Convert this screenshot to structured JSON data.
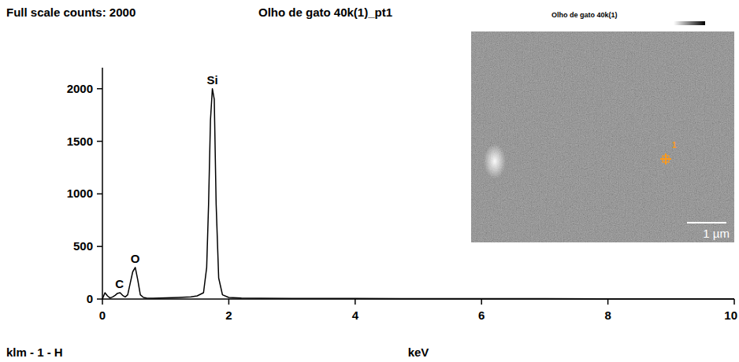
{
  "chart_data": {
    "type": "line",
    "title": "Olho de gato 40k(1)_pt1",
    "header": "Full scale counts: 2000",
    "footer": "klm - 1 - H",
    "x_label": "keV",
    "color": "#000000",
    "x": [
      0,
      0.04,
      0.08,
      0.12,
      0.16,
      0.2,
      0.24,
      0.28,
      0.32,
      0.36,
      0.4,
      0.44,
      0.48,
      0.52,
      0.56,
      0.6,
      0.65,
      0.7,
      0.8,
      0.9,
      1.0,
      1.2,
      1.4,
      1.5,
      1.6,
      1.65,
      1.68,
      1.71,
      1.74,
      1.77,
      1.8,
      1.84,
      1.9,
      2.0,
      2.2,
      2.5,
      3.0,
      3.5,
      4,
      5,
      6,
      7,
      8,
      9,
      10
    ],
    "values": [
      0,
      60,
      30,
      10,
      20,
      35,
      55,
      60,
      35,
      20,
      40,
      150,
      260,
      300,
      180,
      40,
      15,
      10,
      8,
      10,
      12,
      15,
      20,
      30,
      60,
      300,
      900,
      1700,
      2000,
      1900,
      900,
      200,
      40,
      15,
      10,
      8,
      6,
      5,
      5,
      4,
      3,
      3,
      2,
      2,
      2
    ],
    "xlim": [
      0,
      10
    ],
    "xticks": [
      0,
      2,
      4,
      6,
      8,
      10
    ],
    "ylim": [
      0,
      2200
    ],
    "yticks": [
      0,
      500,
      1000,
      1500,
      2000
    ],
    "annotations": [
      {
        "text": "C",
        "x": 0.27,
        "y": 60
      },
      {
        "text": "O",
        "x": 0.52,
        "y": 300
      },
      {
        "text": "Si",
        "x": 1.74,
        "y": 2000
      }
    ],
    "image": {
      "title": "Olho de gato 40k(1)",
      "point_label": "1",
      "scale_bar": "1 µm"
    }
  }
}
